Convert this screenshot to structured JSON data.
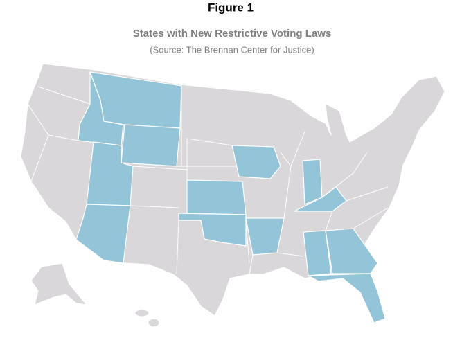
{
  "figure_label": "Figure 1",
  "map": {
    "title": "States with New Restrictive Voting Laws",
    "subtitle": "(Source: The Brennan Center for Justice)",
    "base_color": "#d9d7d9",
    "highlight_color": "#93c4d7"
  }
}
